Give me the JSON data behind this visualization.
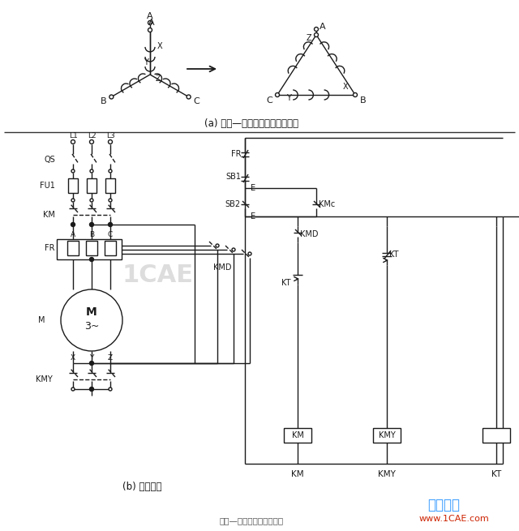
{
  "title": "星形—三角形自动控制线路",
  "subtitle_a": "(a) 星形—三角形转换绕组连接图",
  "subtitle_b": "(b) 控制线路",
  "watermark": "仿真在线",
  "watermark_url": "www.1CAE.com",
  "bg_color": "#ffffff",
  "line_color": "#1a1a1a",
  "watermark_color": "#3399ff",
  "url_color": "#cc2200",
  "gray_wm": "#aaaaaa"
}
